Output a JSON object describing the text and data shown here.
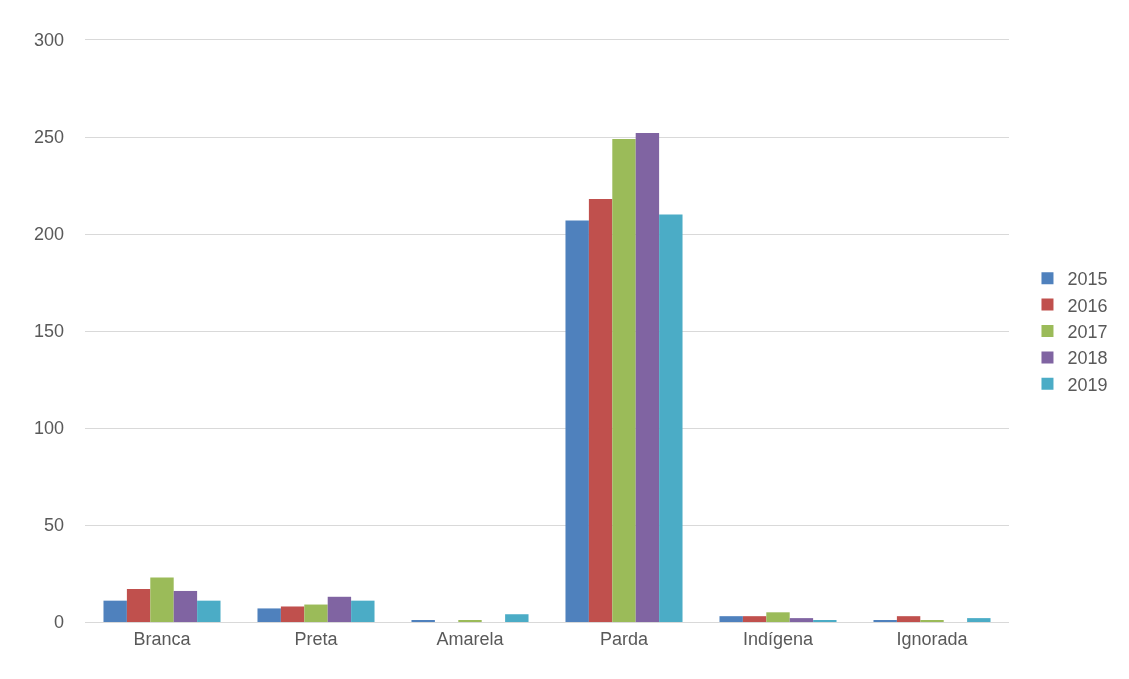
{
  "chart_data": {
    "type": "bar",
    "categories": [
      "Branca",
      "Preta",
      "Amarela",
      "Parda",
      "Indígena",
      "Ignorada"
    ],
    "series": [
      {
        "name": "2015",
        "color": "#4f81bd",
        "values": [
          11,
          7,
          1,
          207,
          3,
          1
        ]
      },
      {
        "name": "2016",
        "color": "#c0504d",
        "values": [
          17,
          8,
          0,
          218,
          3,
          3
        ]
      },
      {
        "name": "2017",
        "color": "#9bbb59",
        "values": [
          23,
          9,
          1,
          249,
          5,
          1
        ]
      },
      {
        "name": "2018",
        "color": "#8064a2",
        "values": [
          16,
          13,
          0,
          252,
          2,
          0
        ]
      },
      {
        "name": "2019",
        "color": "#4bacc6",
        "values": [
          11,
          11,
          4,
          210,
          1,
          2
        ]
      }
    ],
    "ylim": [
      0,
      300
    ],
    "yticks": [
      0,
      50,
      100,
      150,
      200,
      250,
      300
    ],
    "grid": "y",
    "legend": "right"
  }
}
